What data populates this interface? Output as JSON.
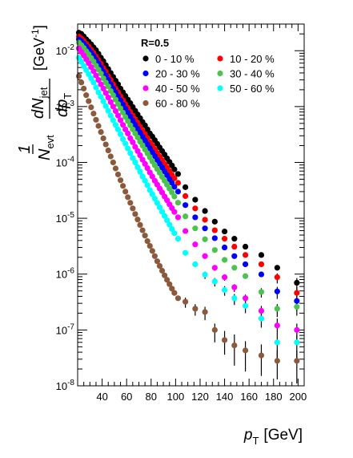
{
  "chart_data": {
    "type": "scatter",
    "title": "",
    "xlabel": {
      "main": "p",
      "sub": "T",
      "unit": "[GeV]"
    },
    "ylabel": {
      "prefix": "1",
      "frac_num": "dN",
      "frac_num_sub": "jet",
      "norm_den": "N",
      "norm_den_sub": "evt",
      "frac_den": "dp",
      "frac_den_sub": "T",
      "unit": "[GeV",
      "unit_exp": "-1",
      "unit_close": "]"
    },
    "y_scale": "log",
    "xlim": [
      20,
      205
    ],
    "ylim": [
      1e-08,
      0.03
    ],
    "x_ticks": [
      40,
      60,
      80,
      100,
      120,
      140,
      160,
      180,
      200
    ],
    "y_ticks": [
      {
        "value": 1e-08,
        "base": "10",
        "exp": "-8"
      },
      {
        "value": 1e-07,
        "base": "10",
        "exp": "-7"
      },
      {
        "value": 1e-06,
        "base": "10",
        "exp": "-6"
      },
      {
        "value": 1e-05,
        "base": "10",
        "exp": "-5"
      },
      {
        "value": 0.0001,
        "base": "10",
        "exp": "-4"
      },
      {
        "value": 0.001,
        "base": "10",
        "exp": "-3"
      },
      {
        "value": 0.01,
        "base": "10",
        "exp": "-2"
      }
    ],
    "annotation": "R=0.5",
    "legend_position": "top-right, two columns",
    "x": [
      21,
      23,
      25,
      27,
      29,
      31,
      33,
      35,
      37,
      39,
      41,
      43,
      45,
      47,
      49,
      51,
      53,
      55,
      57,
      59,
      61,
      63,
      65,
      67,
      69,
      71,
      73,
      75,
      77,
      79,
      81,
      83,
      85,
      87,
      89,
      91,
      93,
      95,
      97,
      99,
      102,
      108,
      116,
      124,
      132,
      140,
      148,
      157,
      170,
      183,
      199
    ],
    "series": [
      {
        "name": "0 - 10 %",
        "color": "#000000",
        "values": [
          0.021,
          0.02,
          0.018,
          0.016,
          0.0145,
          0.013,
          0.0115,
          0.0102,
          0.0088,
          0.0075,
          0.0065,
          0.0055,
          0.0047,
          0.004,
          0.0034,
          0.0029,
          0.0025,
          0.0021,
          0.0018,
          0.00155,
          0.00133,
          0.00115,
          0.00098,
          0.00084,
          0.00072,
          0.00062,
          0.00053,
          0.00046,
          0.00039,
          0.00033,
          0.00029,
          0.00025,
          0.000215,
          0.000185,
          0.00016,
          0.000138,
          0.000118,
          0.000102,
          8.8e-05,
          7.5e-05,
          6.2e-05,
          3.6e-05,
          2.15e-05,
          1.35e-05,
          8.7e-06,
          5.8e-06,
          4.3e-06,
          3.1e-06,
          2.2e-06,
          1.3e-06,
          7e-07
        ],
        "err_low": [
          0,
          0,
          0,
          0,
          0,
          0,
          0,
          0,
          0,
          0,
          0,
          0,
          0,
          0,
          0,
          0,
          0,
          0,
          0,
          0,
          0,
          0,
          0,
          0,
          0,
          0,
          0,
          0,
          0,
          0,
          0,
          0,
          0,
          0,
          0,
          0,
          0,
          0,
          0,
          0,
          0,
          0,
          0,
          0,
          0,
          0,
          0,
          0,
          0,
          0,
          2.5e-07
        ],
        "err_high": [
          0,
          0,
          0,
          0,
          0,
          0,
          0,
          0,
          0,
          0,
          0,
          0,
          0,
          0,
          0,
          0,
          0,
          0,
          0,
          0,
          0,
          0,
          0,
          0,
          0,
          0,
          0,
          0,
          0,
          0,
          0,
          0,
          0,
          0,
          0,
          0,
          0,
          0,
          0,
          0,
          0,
          0,
          0,
          0,
          0,
          0,
          0,
          0,
          0,
          0,
          1.5e-07
        ]
      },
      {
        "name": "10 - 20 %",
        "color": "#ff0000",
        "values": [
          0.018,
          0.0165,
          0.015,
          0.0133,
          0.0118,
          0.0104,
          0.0091,
          0.0079,
          0.0068,
          0.0058,
          0.0049,
          0.0042,
          0.0035,
          0.003,
          0.0025,
          0.0021,
          0.0018,
          0.00152,
          0.0013,
          0.0011,
          0.00094,
          0.0008,
          0.00068,
          0.00058,
          0.0005,
          0.00043,
          0.00037,
          0.00032,
          0.00027,
          0.00023,
          0.0002,
          0.000172,
          0.000148,
          0.000127,
          0.00011,
          9.4e-05,
          8.1e-05,
          7e-05,
          6e-05,
          5.2e-05,
          4.3e-05,
          2.5e-05,
          1.5e-05,
          9.4e-06,
          6.1e-06,
          4.3e-06,
          3.1e-06,
          2.2e-06,
          1.5e-06,
          8.8e-07,
          4.6e-07
        ],
        "err_low": [
          0,
          0,
          0,
          0,
          0,
          0,
          0,
          0,
          0,
          0,
          0,
          0,
          0,
          0,
          0,
          0,
          0,
          0,
          0,
          0,
          0,
          0,
          0,
          0,
          0,
          0,
          0,
          0,
          0,
          0,
          0,
          0,
          0,
          0,
          0,
          0,
          0,
          0,
          0,
          0,
          0,
          0,
          0,
          0,
          0,
          0,
          0,
          0,
          0,
          2e-07,
          2e-07
        ],
        "err_high": [
          0,
          0,
          0,
          0,
          0,
          0,
          0,
          0,
          0,
          0,
          0,
          0,
          0,
          0,
          0,
          0,
          0,
          0,
          0,
          0,
          0,
          0,
          0,
          0,
          0,
          0,
          0,
          0,
          0,
          0,
          0,
          0,
          0,
          0,
          0,
          0,
          0,
          0,
          0,
          0,
          0,
          0,
          0,
          0,
          0,
          0,
          0,
          0,
          0,
          1.5e-07,
          1.2e-07
        ]
      },
      {
        "name": "20 - 30 %",
        "color": "#0000ff",
        "values": [
          0.016,
          0.0148,
          0.0133,
          0.0118,
          0.0104,
          0.0092,
          0.008,
          0.0069,
          0.0059,
          0.005,
          0.0042,
          0.0036,
          0.003,
          0.0025,
          0.0021,
          0.00178,
          0.0015,
          0.00127,
          0.00108,
          0.00091,
          0.00078,
          0.00066,
          0.00056,
          0.00047,
          0.0004,
          0.00034,
          0.00029,
          0.000247,
          0.00021,
          0.000179,
          0.000152,
          0.00013,
          0.000111,
          9.5e-05,
          8.1e-05,
          6.9e-05,
          5.9e-05,
          5e-05,
          4.3e-05,
          3.65e-05,
          3e-05,
          1.72e-05,
          1.04e-05,
          6.6e-06,
          4.4e-06,
          3e-06,
          2.1e-06,
          1.5e-06,
          9.9e-07,
          4.9e-07,
          3.3e-07
        ],
        "err_low": [
          0,
          0,
          0,
          0,
          0,
          0,
          0,
          0,
          0,
          0,
          0,
          0,
          0,
          0,
          0,
          0,
          0,
          0,
          0,
          0,
          0,
          0,
          0,
          0,
          0,
          0,
          0,
          0,
          0,
          0,
          0,
          0,
          0,
          0,
          0,
          0,
          0,
          0,
          0,
          0,
          0,
          0,
          0,
          0,
          0,
          0,
          0,
          0,
          0,
          1.3e-07,
          1e-07
        ],
        "err_high": [
          0,
          0,
          0,
          0,
          0,
          0,
          0,
          0,
          0,
          0,
          0,
          0,
          0,
          0,
          0,
          0,
          0,
          0,
          0,
          0,
          0,
          0,
          0,
          0,
          0,
          0,
          0,
          0,
          0,
          0,
          0,
          0,
          0,
          0,
          0,
          0,
          0,
          0,
          0,
          0,
          0,
          0,
          0,
          0,
          0,
          0,
          0,
          0,
          0,
          1e-07,
          8e-08
        ]
      },
      {
        "name": "30 - 40 %",
        "color": "#4cc34c",
        "values": [
          0.014,
          0.0126,
          0.0112,
          0.0098,
          0.0086,
          0.0074,
          0.0064,
          0.0054,
          0.0046,
          0.0039,
          0.0032,
          0.0027,
          0.0023,
          0.0019,
          0.0016,
          0.00133,
          0.00111,
          0.00093,
          0.00078,
          0.00065,
          0.00055,
          0.00046,
          0.00039,
          0.00033,
          0.00028,
          0.000235,
          0.0002,
          0.00017,
          0.000145,
          0.000123,
          0.000104,
          8.9e-05,
          7.6e-05,
          6.5e-05,
          5.5e-05,
          4.7e-05,
          4e-05,
          3.4e-05,
          2.9e-05,
          2.45e-05,
          1.9e-05,
          1.08e-05,
          6.6e-06,
          4.2e-06,
          2.7e-06,
          1.8e-06,
          1.3e-06,
          9.2e-07,
          4.8e-07,
          2.4e-07,
          2.6e-07
        ],
        "err_low": [
          0,
          0,
          0,
          0,
          0,
          0,
          0,
          0,
          0,
          0,
          0,
          0,
          0,
          0,
          0,
          0,
          0,
          0,
          0,
          0,
          0,
          0,
          0,
          0,
          0,
          0,
          0,
          0,
          0,
          0,
          0,
          0,
          0,
          0,
          0,
          0,
          0,
          0,
          0,
          0,
          0,
          0,
          0,
          0,
          0,
          0,
          0,
          0,
          1e-07,
          7e-08,
          8e-08
        ],
        "err_high": [
          0,
          0,
          0,
          0,
          0,
          0,
          0,
          0,
          0,
          0,
          0,
          0,
          0,
          0,
          0,
          0,
          0,
          0,
          0,
          0,
          0,
          0,
          0,
          0,
          0,
          0,
          0,
          0,
          0,
          0,
          0,
          0,
          0,
          0,
          0,
          0,
          0,
          0,
          0,
          0,
          0,
          0,
          0,
          0,
          0,
          0,
          0,
          0,
          8e-08,
          5e-08,
          6e-08
        ]
      },
      {
        "name": "40 - 50 %",
        "color": "#ff00ff",
        "values": [
          0.011,
          0.0095,
          0.0082,
          0.007,
          0.006,
          0.0051,
          0.0043,
          0.0036,
          0.003,
          0.0025,
          0.0021,
          0.00175,
          0.00145,
          0.0012,
          0.001,
          0.00083,
          0.00069,
          0.00057,
          0.00047,
          0.00039,
          0.00033,
          0.00027,
          0.00023,
          0.00019,
          0.00016,
          0.000134,
          0.000112,
          9.4e-05,
          7.9e-05,
          6.6e-05,
          5.6e-05,
          4.7e-05,
          4e-05,
          3.4e-05,
          2.9e-05,
          2.45e-05,
          2.1e-05,
          1.78e-05,
          1.52e-05,
          1.3e-05,
          1.04e-05,
          5.9e-06,
          3.4e-06,
          2.1e-06,
          1.3e-06,
          8.8e-07,
          5.8e-07,
          3.7e-07,
          2.2e-07,
          1.2e-07,
          1e-07
        ],
        "err_low": [
          0,
          0,
          0,
          0,
          0,
          0,
          0,
          0,
          0,
          0,
          0,
          0,
          0,
          0,
          0,
          0,
          0,
          0,
          0,
          0,
          0,
          0,
          0,
          0,
          0,
          0,
          0,
          0,
          0,
          0,
          0,
          0,
          0,
          0,
          0,
          0,
          0,
          0,
          0,
          0,
          0,
          0,
          0,
          0,
          1.5e-07,
          1.2e-07,
          1e-07,
          7e-08,
          6e-08,
          4e-08,
          4e-08
        ],
        "err_high": [
          0,
          0,
          0,
          0,
          0,
          0,
          0,
          0,
          0,
          0,
          0,
          0,
          0,
          0,
          0,
          0,
          0,
          0,
          0,
          0,
          0,
          0,
          0,
          0,
          0,
          0,
          0,
          0,
          0,
          0,
          0,
          0,
          0,
          0,
          0,
          0,
          0,
          0,
          0,
          0,
          0,
          0,
          0,
          0,
          1.2e-07,
          1e-07,
          8e-08,
          6e-08,
          5e-08,
          4e-08,
          3e-08
        ]
      },
      {
        "name": "50 - 60 %",
        "color": "#00ffff",
        "values": [
          0.0075,
          0.0063,
          0.0053,
          0.0045,
          0.0038,
          0.0032,
          0.0027,
          0.0022,
          0.0018,
          0.0015,
          0.00124,
          0.00102,
          0.00084,
          0.00069,
          0.00057,
          0.00047,
          0.00039,
          0.00032,
          0.00026,
          0.000216,
          0.000178,
          0.000146,
          0.00012,
          0.0001,
          8.2e-05,
          6.8e-05,
          5.6e-05,
          4.7e-05,
          3.9e-05,
          3.2e-05,
          2.7e-05,
          2.25e-05,
          1.88e-05,
          1.57e-05,
          1.31e-05,
          1.1e-05,
          9.2e-06,
          7.7e-06,
          6.4e-06,
          5.4e-06,
          4.3e-06,
          2.4e-06,
          1.5e-06,
          9.8e-07,
          7.4e-07,
          5.2e-07,
          3.7e-07,
          2.7e-07,
          1.6e-07,
          6e-08,
          6e-08
        ],
        "err_low": [
          0,
          0,
          0,
          0,
          0,
          0,
          0,
          0,
          0,
          0,
          0,
          0,
          0,
          0,
          0,
          0,
          0,
          0,
          0,
          0,
          0,
          0,
          0,
          0,
          0,
          0,
          0,
          0,
          0,
          0,
          0,
          0,
          0,
          0,
          0,
          0,
          0,
          0,
          0,
          0,
          0,
          0,
          0,
          1.6e-07,
          1.4e-07,
          1.1e-07,
          9e-08,
          7e-08,
          5e-08,
          3e-08,
          3e-08
        ],
        "err_high": [
          0,
          0,
          0,
          0,
          0,
          0,
          0,
          0,
          0,
          0,
          0,
          0,
          0,
          0,
          0,
          0,
          0,
          0,
          0,
          0,
          0,
          0,
          0,
          0,
          0,
          0,
          0,
          0,
          0,
          0,
          0,
          0,
          0,
          0,
          0,
          0,
          0,
          0,
          0,
          0,
          0,
          0,
          0,
          1.3e-07,
          1.1e-07,
          9e-08,
          7e-08,
          6e-08,
          4e-08,
          2e-08,
          2e-08
        ]
      },
      {
        "name": "60 - 80 %",
        "color": "#8b5a3c",
        "values": [
          0.0035,
          0.0027,
          0.0021,
          0.0016,
          0.00125,
          0.00097,
          0.00075,
          0.00058,
          0.00045,
          0.00035,
          0.00027,
          0.00021,
          0.000164,
          0.000128,
          0.0001,
          7.8e-05,
          6.1e-05,
          4.8e-05,
          3.8e-05,
          3e-05,
          2.38e-05,
          1.89e-05,
          1.5e-05,
          1.19e-05,
          9.5e-06,
          7.6e-06,
          6.1e-06,
          4.9e-06,
          3.9e-06,
          3.2e-06,
          2.6e-06,
          2.1e-06,
          1.7e-06,
          1.4e-06,
          1.15e-06,
          9.5e-07,
          7.9e-07,
          6.6e-07,
          5.5e-07,
          4.6e-07,
          3.7e-07,
          3.2e-07,
          2.4e-07,
          2.1e-07,
          1e-07,
          6.6e-08,
          5.3e-08,
          4.3e-08,
          3.5e-08,
          2.8e-08,
          2.8e-08
        ],
        "err_low": [
          0,
          0,
          0,
          0,
          0,
          0,
          0,
          0,
          0,
          0,
          0,
          0,
          0,
          0,
          0,
          0,
          0,
          0,
          0,
          0,
          0,
          0,
          0,
          0,
          0,
          0,
          0,
          0,
          0,
          0,
          0,
          0,
          0,
          0,
          0,
          0,
          0,
          0,
          0,
          0,
          0,
          7e-08,
          6e-08,
          6e-08,
          4e-08,
          3e-08,
          3e-08,
          2.5e-08,
          2e-08,
          1.5e-08,
          1.7e-08
        ],
        "err_high": [
          0,
          0,
          0,
          0,
          0,
          0,
          0,
          0,
          0,
          0,
          0,
          0,
          0,
          0,
          0,
          0,
          0,
          0,
          0,
          0,
          0,
          0,
          0,
          0,
          0,
          0,
          0,
          0,
          0,
          0,
          0,
          0,
          0,
          0,
          0,
          0,
          0,
          0,
          0,
          0,
          0,
          6e-08,
          5e-08,
          5e-08,
          3e-08,
          3e-08,
          3e-08,
          2e-08,
          2e-08,
          1.5e-08,
          1.5e-08
        ]
      }
    ]
  }
}
